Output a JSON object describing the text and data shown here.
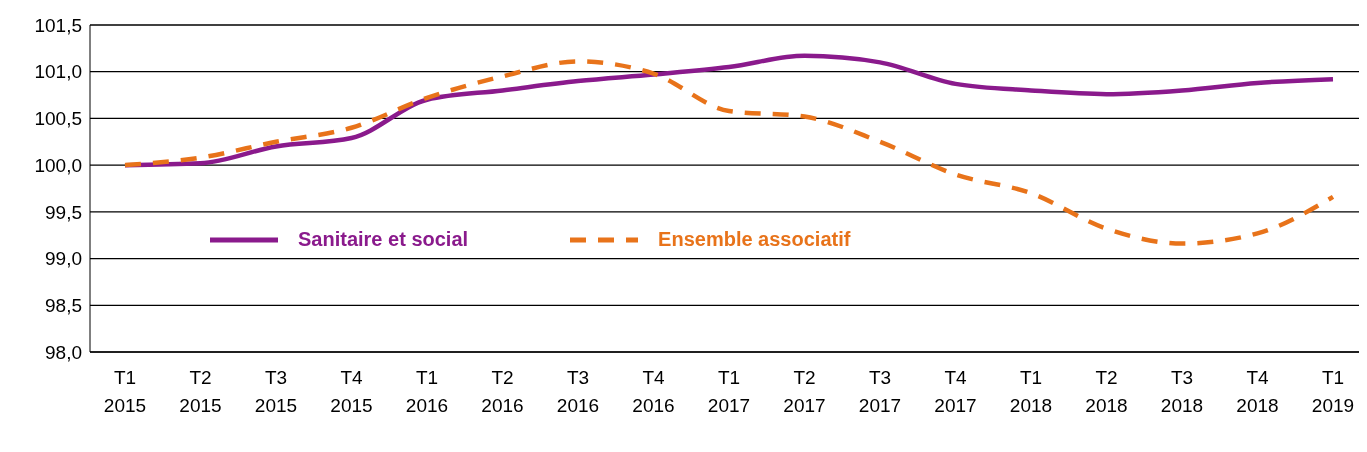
{
  "chart_data": {
    "type": "line",
    "categories": [
      "T1 2015",
      "T2 2015",
      "T3 2015",
      "T4 2015",
      "T1 2016",
      "T2 2016",
      "T3 2016",
      "T4 2016",
      "T1 2017",
      "T2 2017",
      "T3 2017",
      "T4 2017",
      "T1 2018",
      "T2 2018",
      "T3 2018",
      "T4 2018",
      "T1 2019"
    ],
    "series": [
      {
        "name": "Sanitaire et social",
        "color": "#8a1a8c",
        "line_style": "solid",
        "values": [
          100.0,
          100.02,
          100.2,
          100.29,
          100.7,
          100.8,
          100.9,
          100.97,
          101.05,
          101.17,
          101.1,
          100.87,
          100.8,
          100.76,
          100.8,
          100.88,
          100.92
        ]
      },
      {
        "name": "Ensemble associatif",
        "color": "#e8731a",
        "line_style": "dashed",
        "values": [
          100.0,
          100.08,
          100.25,
          100.4,
          100.72,
          100.95,
          101.11,
          100.98,
          100.58,
          100.52,
          100.25,
          99.9,
          99.7,
          99.32,
          99.16,
          99.27,
          99.66
        ]
      }
    ],
    "ylim": [
      98.0,
      101.5
    ],
    "yticks": [
      {
        "value": 98.0,
        "label": "98,0"
      },
      {
        "value": 98.5,
        "label": "98,5"
      },
      {
        "value": 99.0,
        "label": "99,0"
      },
      {
        "value": 99.5,
        "label": "99,5"
      },
      {
        "value": 100.0,
        "label": "100,0"
      },
      {
        "value": 100.5,
        "label": "100,5"
      },
      {
        "value": 101.0,
        "label": "101,0"
      },
      {
        "value": 101.5,
        "label": "101,5"
      }
    ],
    "grid": "y",
    "legend": "left",
    "marker": "none"
  }
}
